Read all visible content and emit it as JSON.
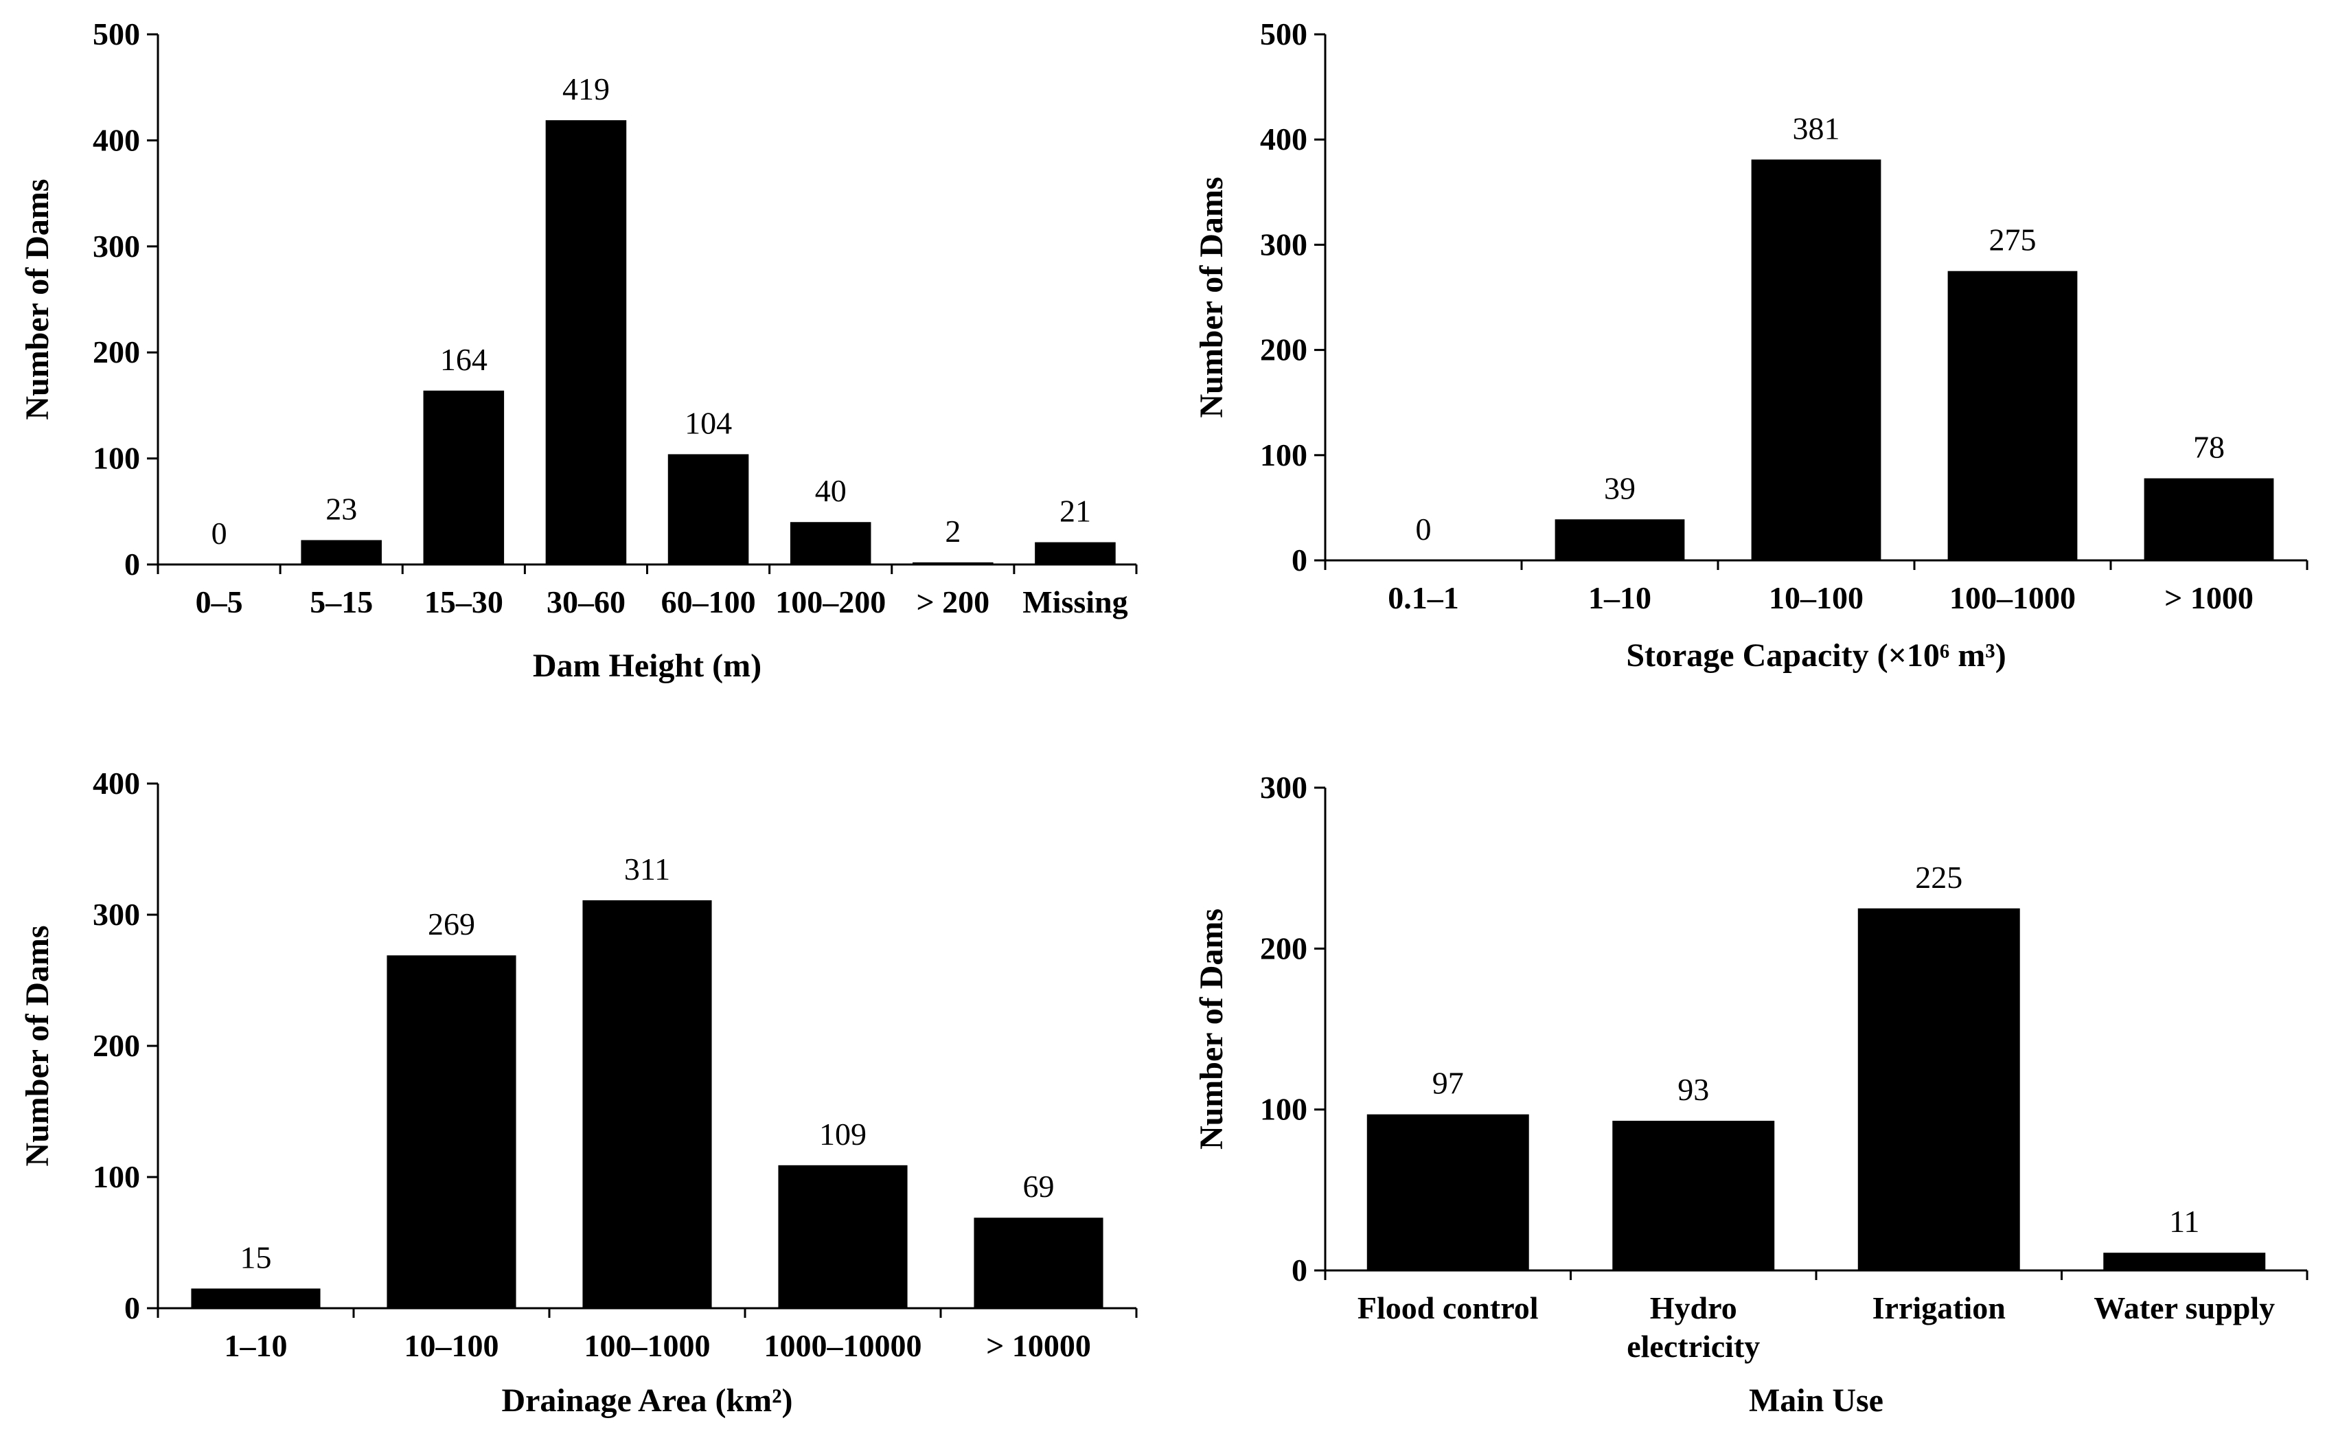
{
  "chart_data": [
    {
      "type": "bar",
      "categories": [
        "0–5",
        "5–15",
        "15–30",
        "30–60",
        "60–100",
        "100–200",
        "> 200",
        "Missing"
      ],
      "values": [
        0,
        23,
        164,
        419,
        104,
        40,
        2,
        21
      ],
      "data_labels": [
        "0",
        "23",
        "164",
        "419",
        "104",
        "40",
        "2",
        "21"
      ],
      "xlabel": "Dam Height (m)",
      "ylabel": "Number of Dams",
      "ylim": [
        0,
        500
      ],
      "yticks": [
        0,
        100,
        200,
        300,
        400,
        500
      ],
      "ytick_labels": [
        "0",
        "100",
        "200",
        "300",
        "400",
        "500"
      ],
      "grid": false
    },
    {
      "type": "bar",
      "categories": [
        "0.1–1",
        "1–10",
        "10–100",
        "100–1000",
        "> 1000"
      ],
      "values": [
        0,
        39,
        381,
        275,
        78
      ],
      "data_labels": [
        "0",
        "39",
        "381",
        "275",
        "78"
      ],
      "xlabel": "Storage Capacity (×10⁶ m³)",
      "ylabel": "Number of Dams",
      "ylim": [
        0,
        500
      ],
      "yticks": [
        0,
        100,
        200,
        300,
        400,
        500
      ],
      "ytick_labels": [
        "0",
        "100",
        "200",
        "300",
        "400",
        "500"
      ],
      "grid": false
    },
    {
      "type": "bar",
      "categories": [
        "1–10",
        "10–100",
        "100–1000",
        "1000–10000",
        "> 10000"
      ],
      "values": [
        15,
        269,
        311,
        109,
        69
      ],
      "data_labels": [
        "15",
        "269",
        "311",
        "109",
        "69"
      ],
      "xlabel": "Drainage Area (km²)",
      "ylabel": "Number of Dams",
      "ylim": [
        0,
        400
      ],
      "yticks": [
        0,
        100,
        200,
        300,
        400
      ],
      "ytick_labels": [
        "0",
        "100",
        "200",
        "300",
        "400"
      ],
      "grid": false
    },
    {
      "type": "bar",
      "categories": [
        "Flood control",
        "Hydro electricity",
        "Irrigation",
        "Water supply"
      ],
      "category_lines": [
        [
          "Flood control"
        ],
        [
          "Hydro",
          "electricity"
        ],
        [
          "Irrigation"
        ],
        [
          "Water supply"
        ]
      ],
      "values": [
        97,
        93,
        225,
        11
      ],
      "data_labels": [
        "97",
        "93",
        "225",
        "11"
      ],
      "xlabel": "Main Use",
      "ylabel": "Number of Dams",
      "ylim": [
        0,
        300
      ],
      "yticks": [
        0,
        100,
        200,
        300
      ],
      "ytick_labels": [
        "0",
        "100",
        "200",
        "300"
      ],
      "grid": false
    }
  ]
}
